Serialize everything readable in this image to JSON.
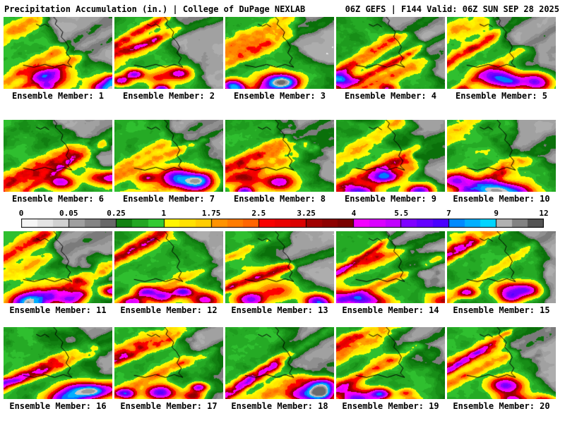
{
  "header": {
    "left": "Precipitation Accumulation (in.) | College of DuPage NEXLAB",
    "right": "06Z GEFS | F144 Valid: 06Z SUN SEP 28 2025"
  },
  "panels": [
    {
      "label": "Ensemble Member: 1"
    },
    {
      "label": "Ensemble Member: 2"
    },
    {
      "label": "Ensemble Member: 3"
    },
    {
      "label": "Ensemble Member: 4"
    },
    {
      "label": "Ensemble Member: 5"
    },
    {
      "label": "Ensemble Member: 6"
    },
    {
      "label": "Ensemble Member: 7"
    },
    {
      "label": "Ensemble Member: 8"
    },
    {
      "label": "Ensemble Member: 9"
    },
    {
      "label": "Ensemble Member: 10"
    },
    {
      "label": "Ensemble Member: 11"
    },
    {
      "label": "Ensemble Member: 12"
    },
    {
      "label": "Ensemble Member: 13"
    },
    {
      "label": "Ensemble Member: 14"
    },
    {
      "label": "Ensemble Member: 15"
    },
    {
      "label": "Ensemble Member: 16"
    },
    {
      "label": "Ensemble Member: 17"
    },
    {
      "label": "Ensemble Member: 18"
    },
    {
      "label": "Ensemble Member: 19"
    },
    {
      "label": "Ensemble Member: 20"
    }
  ],
  "colorbar": {
    "units": "in.",
    "ticks": [
      "0",
      "0.05",
      "0.25",
      "1",
      "1.75",
      "2.5",
      "3.25",
      "4",
      "5.5",
      "7",
      "9",
      "12"
    ],
    "tick_values": [
      0,
      0.05,
      0.25,
      1,
      1.75,
      2.5,
      3.25,
      4,
      5.5,
      7,
      9,
      12
    ]
  },
  "colormap": {
    "segments": [
      {
        "from": 0,
        "to": 0.05,
        "c1": "#FFFFFF",
        "c2": "#C8C8C8"
      },
      {
        "from": 0.05,
        "to": 0.25,
        "c1": "#ADADAD",
        "c2": "#5A5A5A"
      },
      {
        "from": 0.25,
        "to": 1,
        "c1": "#0A700A",
        "c2": "#3CDC3C"
      },
      {
        "from": 1,
        "to": 1.75,
        "c1": "#FFFF00",
        "c2": "#FFC300"
      },
      {
        "from": 1.75,
        "to": 2.5,
        "c1": "#FF9E00",
        "c2": "#FF5A00"
      },
      {
        "from": 2.5,
        "to": 3.25,
        "c1": "#FF0000",
        "c2": "#D40000"
      },
      {
        "from": 3.25,
        "to": 4,
        "c1": "#AA0000",
        "c2": "#700000"
      },
      {
        "from": 4,
        "to": 5.5,
        "c1": "#FF00FF",
        "c2": "#B400FF"
      },
      {
        "from": 5.5,
        "to": 7,
        "c1": "#8C00FF",
        "c2": "#3C00FF"
      },
      {
        "from": 7,
        "to": 9,
        "c1": "#0078FF",
        "c2": "#00E6FF"
      },
      {
        "from": 9,
        "to": 12,
        "c1": "#C8C8C8",
        "c2": "#3C3C3C"
      }
    ]
  }
}
